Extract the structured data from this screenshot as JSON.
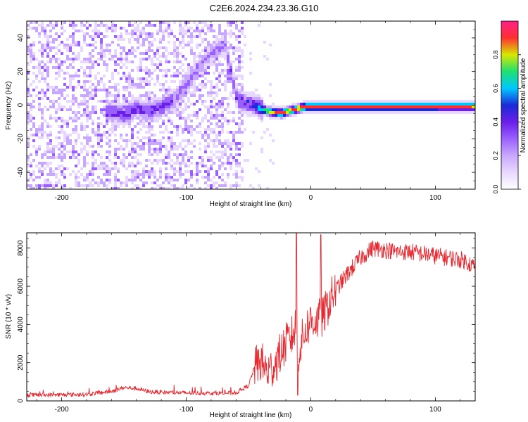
{
  "figure": {
    "title": "C2E6.2024.234.23.36.G10"
  },
  "colors": {
    "spectrum_scale": [
      "#ffffff",
      "#e8d8ff",
      "#c8a8ff",
      "#9a60ff",
      "#6a1fe8",
      "#1a2ad8",
      "#00c8ff",
      "#1ee070",
      "#d8e800",
      "#ff3030",
      "#ff1f8a"
    ],
    "snr_line": "#e8282f",
    "axis": "#000000"
  },
  "chart_data": [
    {
      "type": "heatmap",
      "name": "spectrogram",
      "xlabel": "Height of straight line (km)",
      "ylabel": "Frequency (Hz)",
      "xlim": [
        -228,
        132
      ],
      "ylim": [
        -50,
        50
      ],
      "x_ticks": [
        -200,
        -100,
        0,
        100
      ],
      "y_ticks": [
        -40,
        -20,
        0,
        20,
        40
      ],
      "grid": false,
      "colorbar": {
        "label": "Normalized spectral amplitude",
        "range": [
          0,
          1
        ],
        "ticks": [
          0.0,
          0.2,
          0.4,
          0.6,
          0.8
        ]
      },
      "ridge": {
        "x": [
          -165,
          -150,
          -140,
          -130,
          -120,
          -110,
          -100,
          -90,
          -80,
          -70,
          -60,
          -45,
          -35,
          -25,
          -15,
          -5,
          10,
          30,
          60,
          100,
          132
        ],
        "y": [
          -3,
          -5,
          -1,
          -3,
          0,
          5,
          14,
          24,
          32,
          37,
          4,
          0,
          -3,
          -4,
          -2,
          0,
          0,
          0,
          0,
          0,
          0
        ],
        "amplitude": [
          0.45,
          0.5,
          0.45,
          0.5,
          0.45,
          0.4,
          0.35,
          0.3,
          0.3,
          0.3,
          0.45,
          0.55,
          0.8,
          0.9,
          0.9,
          0.95,
          0.9,
          0.9,
          0.9,
          0.9,
          0.85
        ]
      }
    },
    {
      "type": "line",
      "name": "snr",
      "xlabel": "Height of straight line (km)",
      "ylabel": "SNR (10 * v/v)",
      "xlim": [
        -228,
        132
      ],
      "ylim": [
        0,
        8800
      ],
      "x_ticks": [
        -200,
        -100,
        0,
        100
      ],
      "y_ticks": [
        0,
        2000,
        4000,
        6000,
        8000
      ],
      "grid": false,
      "series": [
        {
          "x": [
            -228,
            -200,
            -180,
            -160,
            -150,
            -140,
            -130,
            -120,
            -100,
            -80,
            -60,
            -50,
            -45,
            -40,
            -35,
            -30,
            -25,
            -20,
            -15,
            -12,
            -10,
            -5,
            0,
            5,
            10,
            15,
            20,
            30,
            40,
            50,
            60,
            70,
            80,
            90,
            100,
            110,
            120,
            125,
            132
          ],
          "y": [
            300,
            320,
            340,
            500,
            700,
            650,
            480,
            450,
            420,
            400,
            420,
            800,
            1800,
            2100,
            1500,
            1800,
            2400,
            3000,
            3400,
            3900,
            2500,
            3600,
            4200,
            4200,
            4400,
            5200,
            5800,
            6700,
            7500,
            8000,
            7900,
            7800,
            7800,
            7700,
            7600,
            7500,
            7400,
            7300,
            7000
          ]
        }
      ]
    }
  ]
}
